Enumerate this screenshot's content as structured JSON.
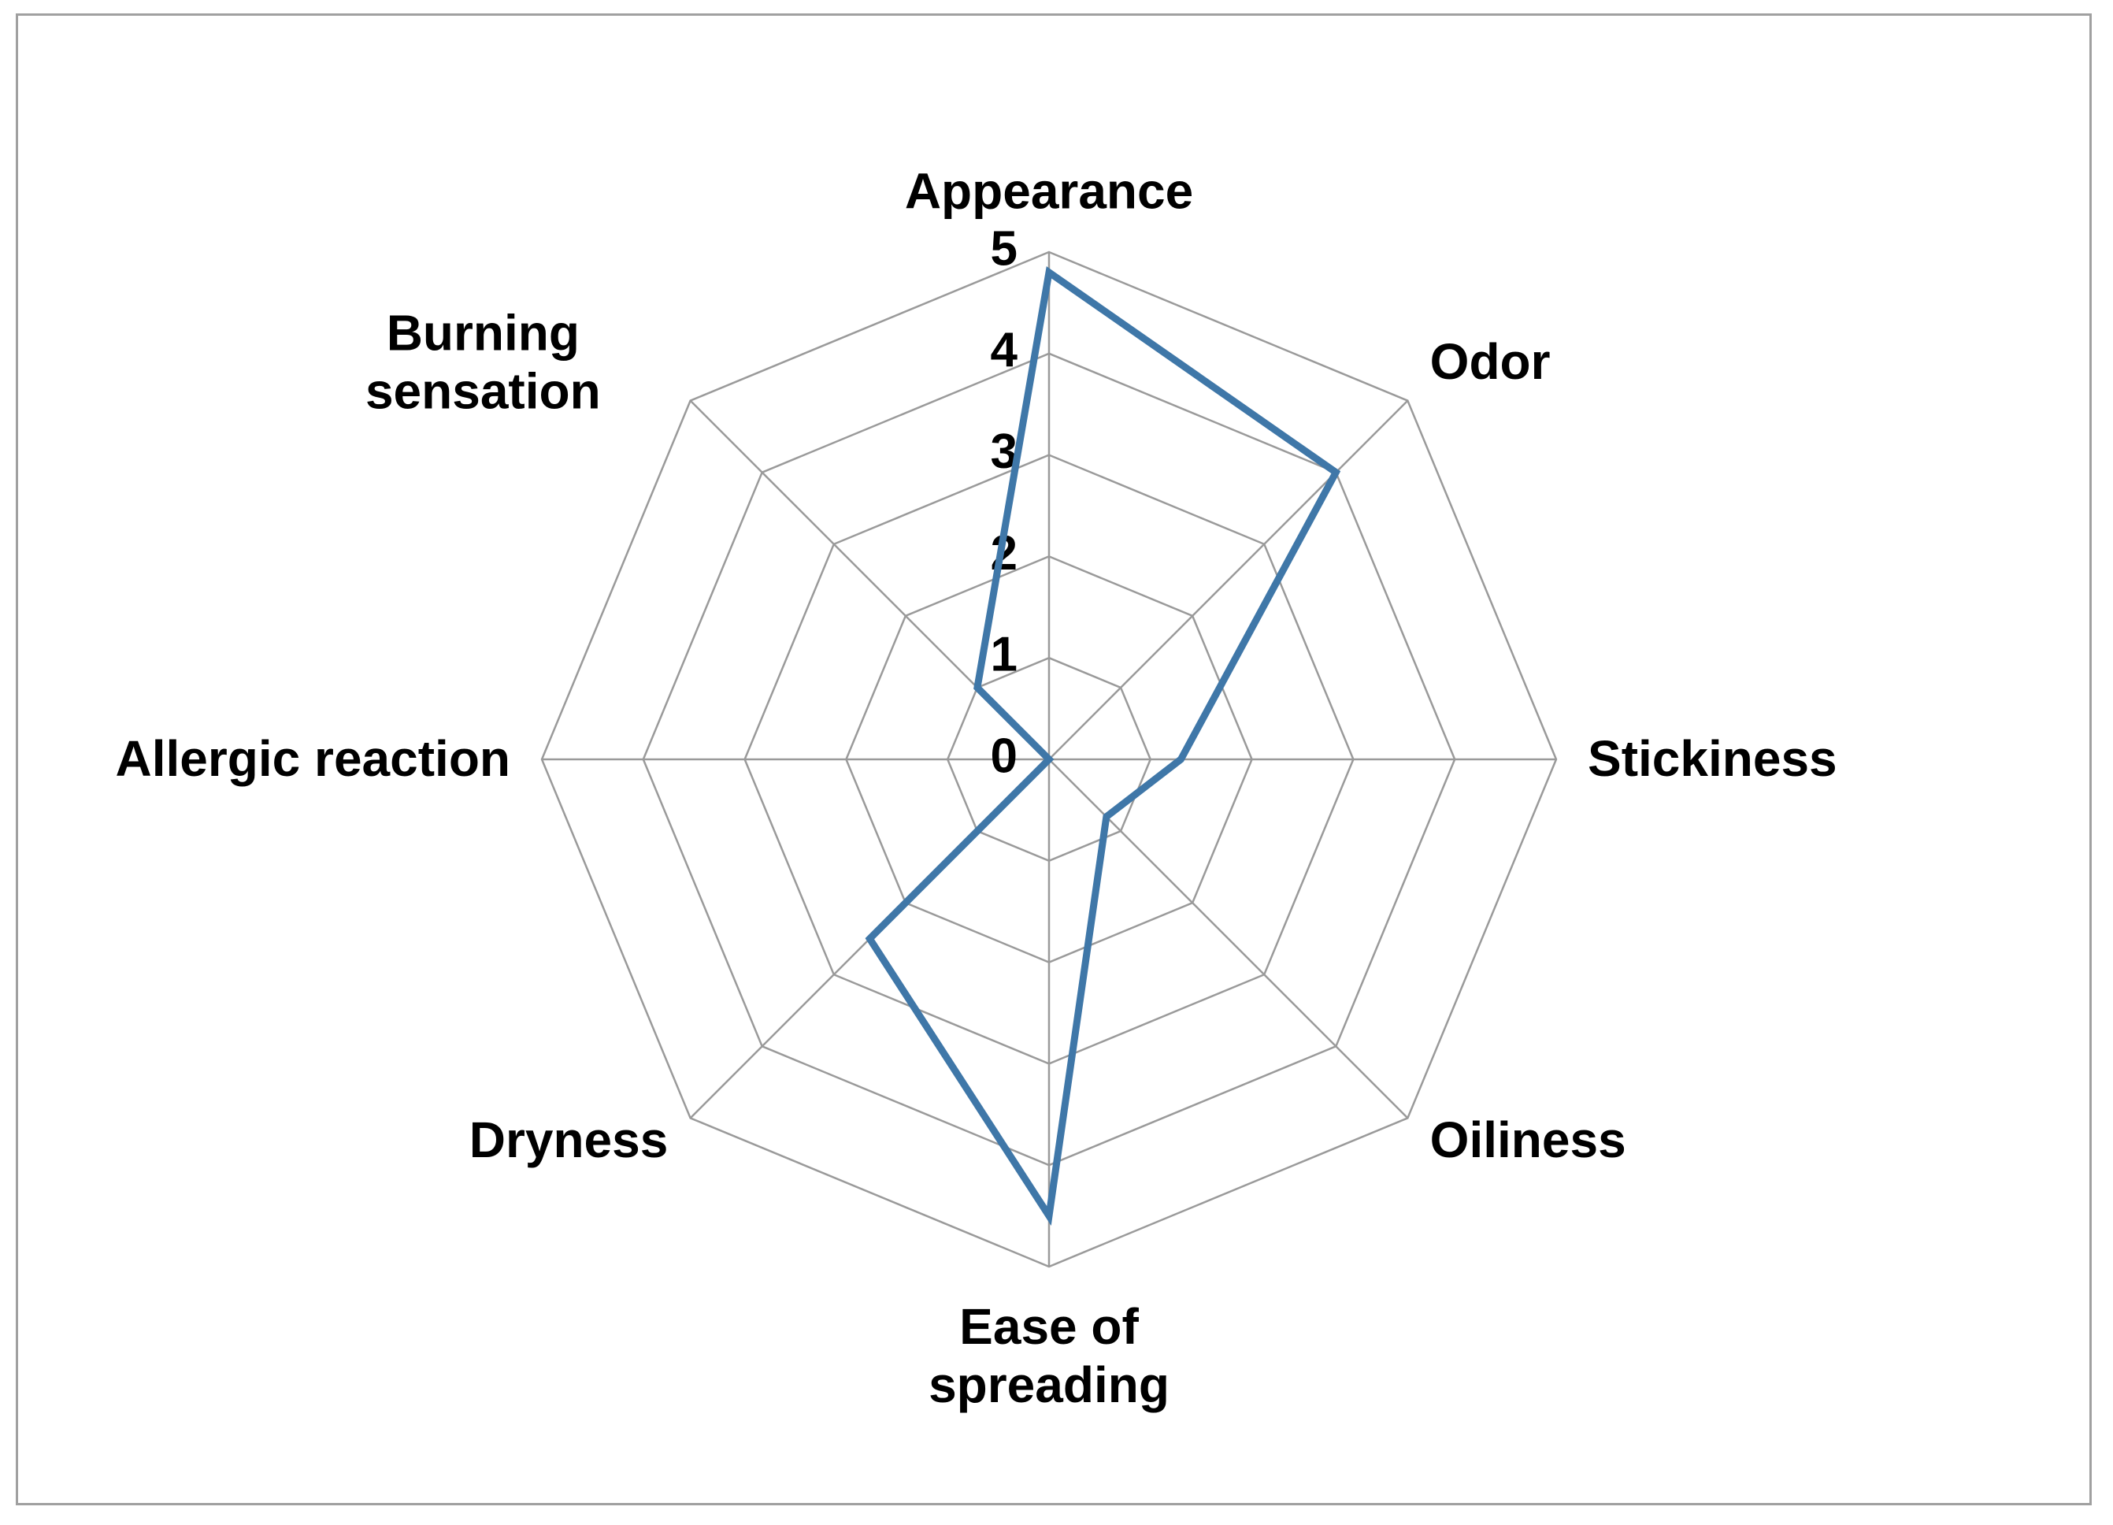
{
  "chart_data": {
    "type": "radar",
    "categories": [
      "Appearance",
      "Odor",
      "Stickiness",
      "Oiliness",
      "Ease of spreading",
      "Dryness",
      "Allergic reaction",
      "Burning sensation"
    ],
    "values": [
      4.8,
      4.0,
      1.3,
      0.8,
      4.5,
      2.5,
      0,
      1.0
    ],
    "color": "#3f77a8",
    "ylim": [
      0,
      5
    ],
    "yticks": [
      0,
      1,
      2,
      3,
      4,
      5
    ],
    "grid": true
  }
}
